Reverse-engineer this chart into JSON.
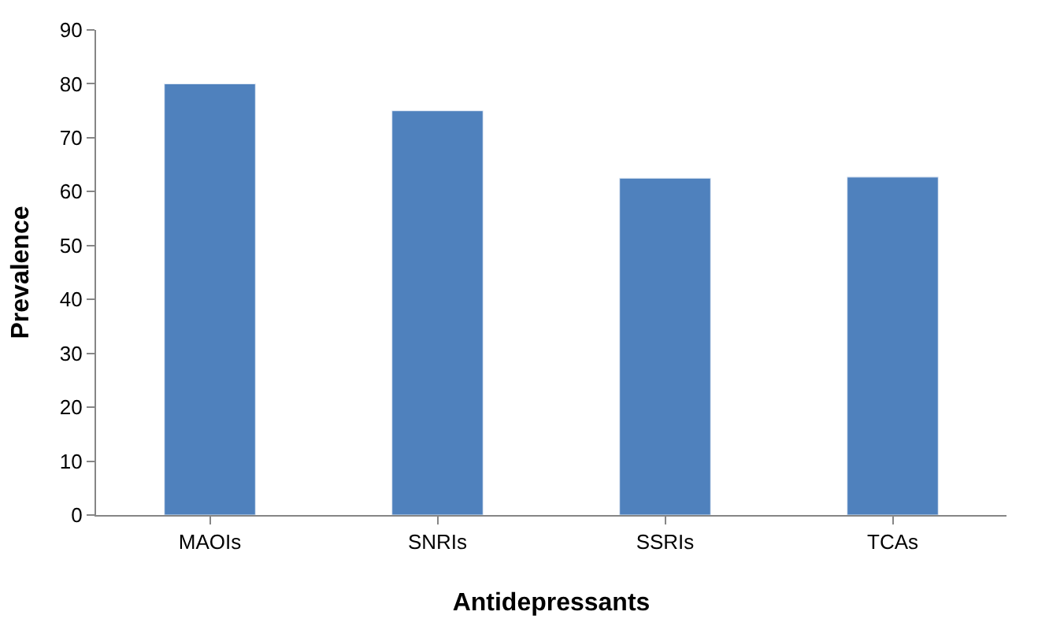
{
  "chart_data": {
    "type": "bar",
    "xlabel": "Antidepressants",
    "ylabel": "Prevalence",
    "categories": [
      "MAOIs",
      "SNRIs",
      "SSRIs",
      "TCAs"
    ],
    "values": [
      80,
      75,
      62.5,
      62.7
    ],
    "color": "#4f81bd",
    "ylim": [
      0,
      90
    ],
    "yticks": [
      0,
      10,
      20,
      30,
      40,
      50,
      60,
      70,
      80,
      90
    ]
  }
}
